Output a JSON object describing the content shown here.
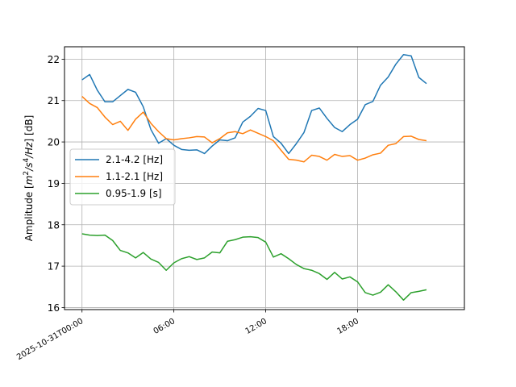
{
  "chart_data": {
    "type": "line",
    "title": "",
    "xlabel": "",
    "ylabel": "Amplitude [m²/s⁴/Hz] [dB]",
    "ylabel_parts": {
      "prefix": "Amplitude [",
      "m": "m",
      "exp2": "2",
      "slash_s": "/s",
      "exp4": "4",
      "slash_hz": "/Hz",
      "suffix": "] [dB]"
    },
    "xlim": [
      "2025-10-31T00:00",
      "2025-10-31T23:50"
    ],
    "ylim": [
      15.95,
      22.3
    ],
    "grid": true,
    "legend_position": "center-left",
    "xtick_labels": [
      "2025-10-31T00:00",
      "06:00",
      "12:00",
      "18:00"
    ],
    "xtick_values": [
      "2025-10-31T00:00",
      "2025-10-31T06:00",
      "2025-10-31T12:00",
      "2025-10-31T18:00"
    ],
    "ytick_values": [
      16,
      17,
      18,
      19,
      20,
      21,
      22
    ],
    "ytick_labels": [
      "16",
      "17",
      "18",
      "19",
      "20",
      "21",
      "22"
    ],
    "x": [
      "2025-10-31T00:00",
      "2025-10-31T00:30",
      "2025-10-31T01:00",
      "2025-10-31T01:30",
      "2025-10-31T02:00",
      "2025-10-31T02:30",
      "2025-10-31T03:00",
      "2025-10-31T03:30",
      "2025-10-31T04:00",
      "2025-10-31T04:30",
      "2025-10-31T05:00",
      "2025-10-31T05:30",
      "2025-10-31T06:00",
      "2025-10-31T06:30",
      "2025-10-31T07:00",
      "2025-10-31T07:30",
      "2025-10-31T08:00",
      "2025-10-31T08:30",
      "2025-10-31T09:00",
      "2025-10-31T09:30",
      "2025-10-31T10:00",
      "2025-10-31T10:30",
      "2025-10-31T11:00",
      "2025-10-31T11:30",
      "2025-10-31T12:00",
      "2025-10-31T12:30",
      "2025-10-31T13:00",
      "2025-10-31T13:30",
      "2025-10-31T14:00",
      "2025-10-31T14:30",
      "2025-10-31T15:00",
      "2025-10-31T15:30",
      "2025-10-31T16:00",
      "2025-10-31T16:30",
      "2025-10-31T17:00",
      "2025-10-31T17:30",
      "2025-10-31T18:00",
      "2025-10-31T18:30",
      "2025-10-31T19:00",
      "2025-10-31T19:30",
      "2025-10-31T20:00",
      "2025-10-31T20:30",
      "2025-10-31T21:00",
      "2025-10-31T21:30",
      "2025-10-31T22:00",
      "2025-10-31T22:30"
    ],
    "series": [
      {
        "name": "2.1-4.2 [Hz]",
        "color": "#1f77b4",
        "values": [
          21.5,
          21.63,
          21.25,
          20.97,
          20.97,
          21.12,
          21.27,
          21.2,
          20.85,
          20.3,
          19.97,
          20.08,
          19.92,
          19.82,
          19.8,
          19.81,
          19.72,
          19.9,
          20.05,
          20.03,
          20.1,
          20.48,
          20.62,
          20.81,
          20.76,
          20.13,
          19.97,
          19.72,
          19.96,
          20.23,
          20.76,
          20.82,
          20.57,
          20.35,
          20.25,
          20.42,
          20.55,
          20.9,
          20.98,
          21.37,
          21.57,
          21.88,
          22.11,
          22.08,
          21.56,
          21.41
        ]
      },
      {
        "name": "1.1-2.1 [Hz]",
        "color": "#ff7f0e",
        "values": [
          21.1,
          20.93,
          20.83,
          20.6,
          20.42,
          20.5,
          20.28,
          20.55,
          20.72,
          20.45,
          20.25,
          20.08,
          20.05,
          20.08,
          20.1,
          20.13,
          20.12,
          19.98,
          20.08,
          20.22,
          20.25,
          20.2,
          20.29,
          20.21,
          20.13,
          20.03,
          19.8,
          19.58,
          19.56,
          19.52,
          19.68,
          19.65,
          19.56,
          19.7,
          19.65,
          19.67,
          19.56,
          19.61,
          19.69,
          19.73,
          19.92,
          19.96,
          20.13,
          20.14,
          20.06,
          20.03
        ]
      },
      {
        "name": "0.95-1.9 [s]",
        "color": "#2ca02c",
        "values": [
          17.78,
          17.75,
          17.74,
          17.75,
          17.62,
          17.38,
          17.32,
          17.2,
          17.33,
          17.17,
          17.09,
          16.9,
          17.08,
          17.18,
          17.23,
          17.16,
          17.2,
          17.34,
          17.32,
          17.6,
          17.64,
          17.7,
          17.71,
          17.69,
          17.58,
          17.22,
          17.3,
          17.18,
          17.04,
          16.94,
          16.9,
          16.82,
          16.68,
          16.85,
          16.69,
          16.74,
          16.62,
          16.36,
          16.3,
          16.37,
          16.55,
          16.38,
          16.18,
          16.36,
          16.39,
          16.43
        ]
      }
    ]
  }
}
